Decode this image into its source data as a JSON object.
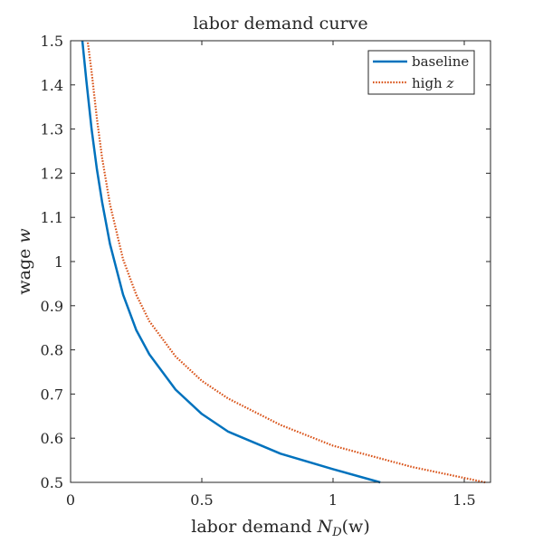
{
  "chart_data": {
    "type": "line",
    "title": "labor demand curve",
    "xlabel": {
      "text": "labor demand ",
      "math_main": "N",
      "math_sub": "D",
      "math_tail": "(w)"
    },
    "ylabel": {
      "text": "wage ",
      "math": "w"
    },
    "xlim": [
      0,
      1.6
    ],
    "ylim": [
      0.5,
      1.5
    ],
    "xticks": [
      0,
      0.5,
      1,
      1.5
    ],
    "xtick_labels": [
      "0",
      "0.5",
      "1",
      "1.5"
    ],
    "yticks": [
      0.5,
      0.6,
      0.7,
      0.8,
      0.9,
      1,
      1.1,
      1.2,
      1.3,
      1.4,
      1.5
    ],
    "ytick_labels": [
      "0.5",
      "0.6",
      "0.7",
      "0.8",
      "0.9",
      "1",
      "1.1",
      "1.2",
      "1.3",
      "1.4",
      "1.5"
    ],
    "grid": false,
    "legend_position": "top-right",
    "series": [
      {
        "name": "baseline",
        "name_text": "baseline",
        "style": "solid",
        "color": "#0072BD",
        "points": [
          [
            1.18,
            0.5
          ],
          [
            1.0,
            0.53
          ],
          [
            0.8,
            0.565
          ],
          [
            0.6,
            0.615
          ],
          [
            0.5,
            0.655
          ],
          [
            0.4,
            0.71
          ],
          [
            0.3,
            0.79
          ],
          [
            0.25,
            0.845
          ],
          [
            0.2,
            0.925
          ],
          [
            0.15,
            1.04
          ],
          [
            0.12,
            1.135
          ],
          [
            0.1,
            1.21
          ],
          [
            0.08,
            1.3
          ],
          [
            0.06,
            1.41
          ],
          [
            0.045,
            1.5
          ]
        ]
      },
      {
        "name": "high z",
        "name_text": "high ",
        "name_math": "z",
        "style": "dotted",
        "color": "#D95319",
        "points": [
          [
            1.58,
            0.5
          ],
          [
            1.3,
            0.535
          ],
          [
            1.0,
            0.583
          ],
          [
            0.8,
            0.63
          ],
          [
            0.6,
            0.69
          ],
          [
            0.5,
            0.73
          ],
          [
            0.4,
            0.785
          ],
          [
            0.3,
            0.865
          ],
          [
            0.25,
            0.925
          ],
          [
            0.2,
            1.005
          ],
          [
            0.15,
            1.13
          ],
          [
            0.12,
            1.235
          ],
          [
            0.1,
            1.325
          ],
          [
            0.08,
            1.43
          ],
          [
            0.065,
            1.5
          ]
        ]
      }
    ]
  }
}
